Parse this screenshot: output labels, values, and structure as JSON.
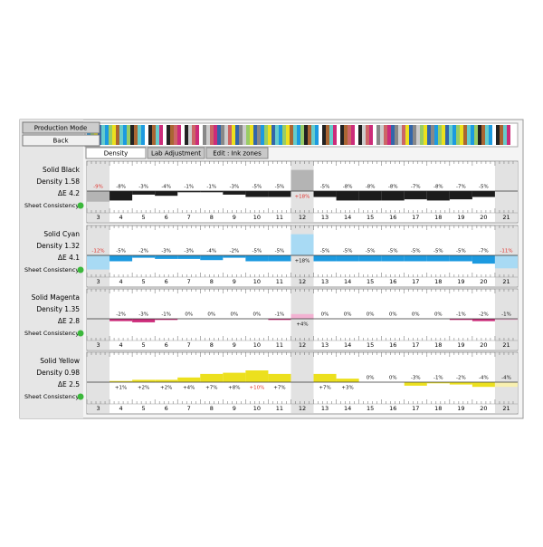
{
  "buttons": [
    "Production Mode",
    "Back"
  ],
  "tabs": [
    "Density",
    "Lab Adjustment",
    "Edit : Ink zones"
  ],
  "active_tab": 0,
  "zones": [
    3,
    4,
    5,
    6,
    7,
    8,
    9,
    10,
    11,
    12,
    13,
    14,
    15,
    16,
    17,
    18,
    19,
    20,
    21
  ],
  "marked_zones": [
    3,
    12,
    21
  ],
  "sheet_consistency": "Sheet Consistency",
  "alert_color": "#e0302a",
  "panels": [
    {
      "name": "Solid Black",
      "density": "Density 1.58",
      "delta_e": "ΔE 4.2",
      "color": "#1c1c1c",
      "marked_color": "#b4b4b4",
      "values": [
        -9,
        -8,
        -3,
        -4,
        -1,
        -1,
        -3,
        -5,
        -5,
        18,
        -5,
        -8,
        -8,
        -8,
        -7,
        -8,
        -7,
        -5,
        null
      ],
      "value_labels": [
        "-9%",
        "-8%",
        "-3%",
        "-4%",
        "-1%",
        "-1%",
        "-3%",
        "-5%",
        "-5%",
        "+18%",
        "-5%",
        "-8%",
        "-8%",
        "-8%",
        "-7%",
        "-8%",
        "-7%",
        "-5%",
        null
      ],
      "alert_zones": [
        3,
        12
      ]
    },
    {
      "name": "Solid Cyan",
      "density": "Density 1.32",
      "delta_e": "ΔE 4.1",
      "color": "#1c9ae0",
      "marked_color": "#a8daf4",
      "values": [
        -12,
        -5,
        -2,
        -3,
        -3,
        -4,
        -2,
        -5,
        -5,
        18,
        -5,
        -5,
        -5,
        -5,
        -5,
        -5,
        -5,
        -7,
        -11
      ],
      "value_labels": [
        "-12%",
        "-5%",
        "-2%",
        "-3%",
        "-3%",
        "-4%",
        "-2%",
        "-5%",
        "-5%",
        "+18%",
        "-5%",
        "-5%",
        "-5%",
        "-5%",
        "-5%",
        "-5%",
        "-5%",
        "-7%",
        "-11%"
      ],
      "alert_zones": [
        3,
        21
      ]
    },
    {
      "name": "Solid Magenta",
      "density": "Density 1.35",
      "delta_e": "ΔE 2.8",
      "color": "#cc2c7a",
      "marked_color": "#f2b2d2",
      "values": [
        null,
        -2,
        -3,
        -1,
        0,
        0,
        0,
        0,
        -1,
        4,
        0,
        0,
        0,
        0,
        0,
        0,
        -1,
        -2,
        -1
      ],
      "value_labels": [
        null,
        "-2%",
        "-3%",
        "-1%",
        "0%",
        "0%",
        "0%",
        "0%",
        "-1%",
        "+4%",
        "0%",
        "0%",
        "0%",
        "0%",
        "0%",
        "0%",
        "-1%",
        "-2%",
        "-1%"
      ],
      "alert_zones": []
    },
    {
      "name": "Solid Yellow",
      "density": "Density 0.98",
      "delta_e": "ΔE 2.5",
      "color": "#ece01e",
      "marked_color": "#f8f0b0",
      "values": [
        null,
        1,
        2,
        2,
        4,
        7,
        8,
        10,
        7,
        null,
        7,
        3,
        0,
        0,
        -3,
        -1,
        -2,
        -4,
        -4
      ],
      "value_labels": [
        null,
        "+1%",
        "+2%",
        "+2%",
        "+4%",
        "+7%",
        "+8%",
        "+10%",
        "+7%",
        null,
        "+7%",
        "+3%",
        "0%",
        "0%",
        "-3%",
        "-1%",
        "-2%",
        "-4%",
        "-4%"
      ],
      "alert_zones": [
        10
      ]
    }
  ]
}
